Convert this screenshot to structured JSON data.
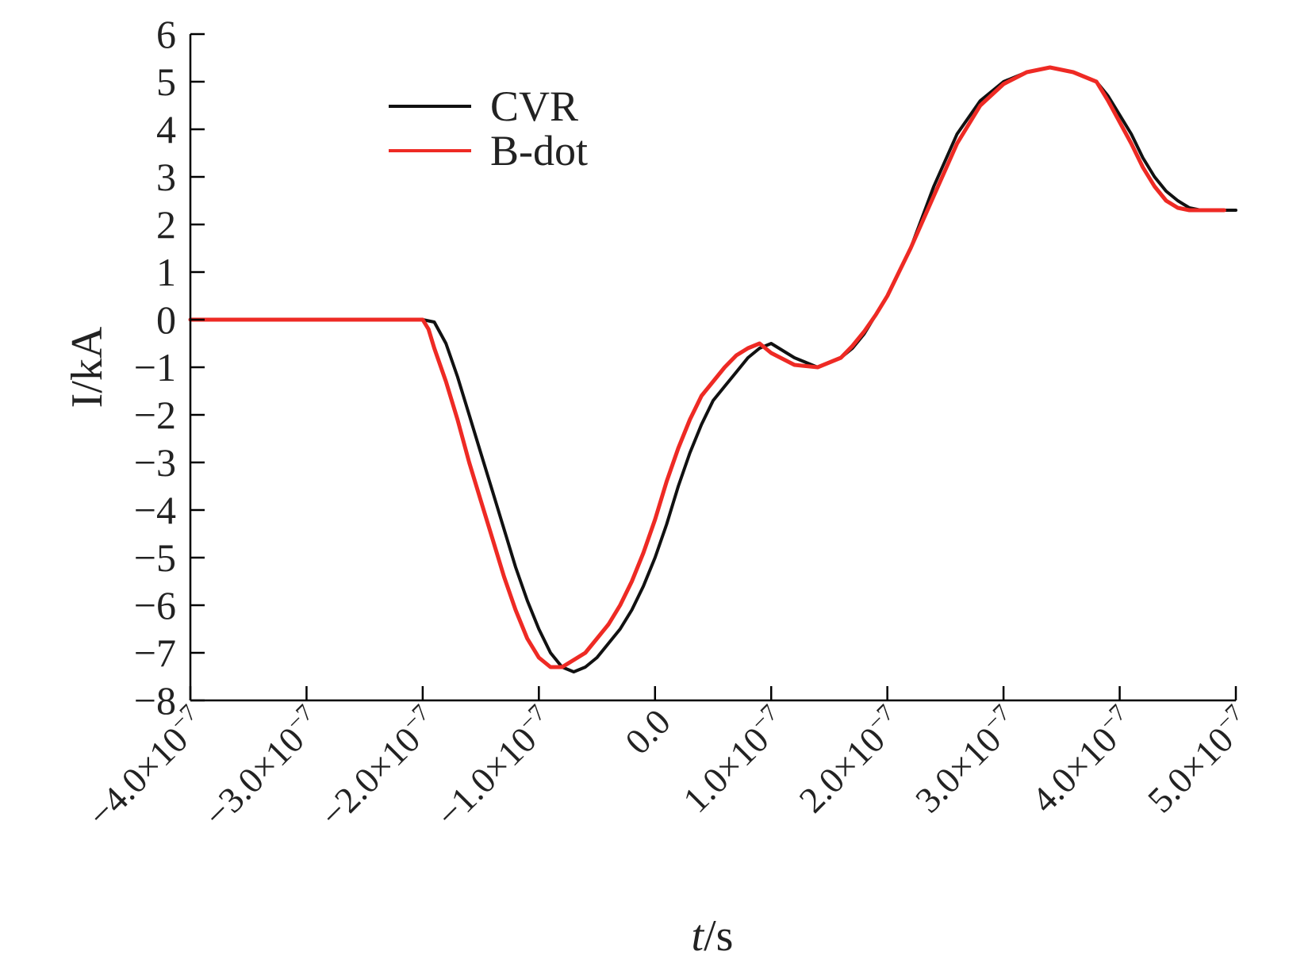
{
  "chart_data": {
    "type": "line",
    "title": "",
    "xlabel": "t/s",
    "xlabel_italic_part": "t",
    "xlabel_rest": "/s",
    "ylabel": "I/kA",
    "xlim": [
      -4e-07,
      5e-07
    ],
    "ylim": [
      -8,
      6
    ],
    "grid": false,
    "legend_position": "upper-left",
    "x_ticks": [
      {
        "value": -4e-07,
        "mant": "−4.0×10",
        "exp": "−7"
      },
      {
        "value": -3e-07,
        "mant": "−3.0×10",
        "exp": "−7"
      },
      {
        "value": -2e-07,
        "mant": "−2.0×10",
        "exp": "−7"
      },
      {
        "value": -1e-07,
        "mant": "−1.0×10",
        "exp": "−7"
      },
      {
        "value": 0,
        "mant": "0.0",
        "exp": ""
      },
      {
        "value": 1e-07,
        "mant": "1.0×10",
        "exp": "−7"
      },
      {
        "value": 2e-07,
        "mant": "2.0×10",
        "exp": "−7"
      },
      {
        "value": 3e-07,
        "mant": "3.0×10",
        "exp": "−7"
      },
      {
        "value": 4e-07,
        "mant": "4.0×10",
        "exp": "−7"
      },
      {
        "value": 5e-07,
        "mant": "5.0×10",
        "exp": "−7"
      }
    ],
    "y_ticks": [
      {
        "value": 6,
        "label": "6"
      },
      {
        "value": 5,
        "label": "5"
      },
      {
        "value": 4,
        "label": "4"
      },
      {
        "value": 3,
        "label": "3"
      },
      {
        "value": 2,
        "label": "2"
      },
      {
        "value": 1,
        "label": "1"
      },
      {
        "value": 0,
        "label": "0"
      },
      {
        "value": -1,
        "label": "−1"
      },
      {
        "value": -2,
        "label": "−2"
      },
      {
        "value": -3,
        "label": "−3"
      },
      {
        "value": -4,
        "label": "−4"
      },
      {
        "value": -5,
        "label": "−5"
      },
      {
        "value": -6,
        "label": "−6"
      },
      {
        "value": -7,
        "label": "−7"
      },
      {
        "value": -8,
        "label": "−8"
      }
    ],
    "series": [
      {
        "name": "CVR",
        "color": "#111111",
        "x": [
          -4e-07,
          -3.5e-07,
          -3e-07,
          -2.5e-07,
          -2e-07,
          -1.9e-07,
          -1.8e-07,
          -1.7e-07,
          -1.6e-07,
          -1.5e-07,
          -1.4e-07,
          -1.3e-07,
          -1.2e-07,
          -1.1e-07,
          -1e-07,
          -9e-08,
          -8e-08,
          -7e-08,
          -6e-08,
          -5e-08,
          -4e-08,
          -3e-08,
          -2e-08,
          -1e-08,
          0,
          1e-08,
          2e-08,
          3e-08,
          4e-08,
          5e-08,
          6e-08,
          7e-08,
          8e-08,
          9e-08,
          1e-07,
          1.2e-07,
          1.4e-07,
          1.6e-07,
          1.7e-07,
          1.8e-07,
          1.9e-07,
          2e-07,
          2.1e-07,
          2.2e-07,
          2.4e-07,
          2.6e-07,
          2.8e-07,
          3e-07,
          3.2e-07,
          3.4e-07,
          3.6e-07,
          3.8e-07,
          3.9e-07,
          4e-07,
          4.1e-07,
          4.2e-07,
          4.3e-07,
          4.4e-07,
          4.5e-07,
          4.6e-07,
          4.7e-07,
          4.8e-07,
          4.9e-07,
          5e-07
        ],
        "y": [
          0,
          0,
          0,
          0,
          0,
          -0.05,
          -0.5,
          -1.2,
          -2.0,
          -2.8,
          -3.6,
          -4.4,
          -5.2,
          -5.9,
          -6.5,
          -7.0,
          -7.3,
          -7.4,
          -7.3,
          -7.1,
          -6.8,
          -6.5,
          -6.1,
          -5.6,
          -5.0,
          -4.3,
          -3.5,
          -2.8,
          -2.2,
          -1.7,
          -1.4,
          -1.1,
          -0.8,
          -0.6,
          -0.5,
          -0.8,
          -1.0,
          -0.8,
          -0.6,
          -0.3,
          0.1,
          0.5,
          1.0,
          1.5,
          2.8,
          3.9,
          4.6,
          5.0,
          5.2,
          5.3,
          5.2,
          5.0,
          4.7,
          4.3,
          3.9,
          3.4,
          3.0,
          2.7,
          2.5,
          2.35,
          2.3,
          2.3,
          2.3,
          2.3
        ]
      },
      {
        "name": "B-dot",
        "color": "#ee2a24",
        "x": [
          -4e-07,
          -3.5e-07,
          -3e-07,
          -2.5e-07,
          -2e-07,
          -1.95e-07,
          -1.9e-07,
          -1.8e-07,
          -1.7e-07,
          -1.6e-07,
          -1.5e-07,
          -1.4e-07,
          -1.3e-07,
          -1.2e-07,
          -1.1e-07,
          -1e-07,
          -9e-08,
          -8e-08,
          -7e-08,
          -6e-08,
          -5e-08,
          -4e-08,
          -3e-08,
          -2e-08,
          -1e-08,
          0,
          1e-08,
          2e-08,
          3e-08,
          4e-08,
          5e-08,
          6e-08,
          7e-08,
          8e-08,
          9e-08,
          1e-07,
          1.2e-07,
          1.4e-07,
          1.6e-07,
          1.7e-07,
          1.8e-07,
          1.9e-07,
          2e-07,
          2.1e-07,
          2.2e-07,
          2.4e-07,
          2.6e-07,
          2.8e-07,
          3e-07,
          3.2e-07,
          3.4e-07,
          3.6e-07,
          3.8e-07,
          3.9e-07,
          4e-07,
          4.1e-07,
          4.2e-07,
          4.3e-07,
          4.4e-07,
          4.5e-07,
          4.6e-07,
          4.7e-07,
          4.8e-07,
          4.9e-07
        ],
        "y": [
          0,
          0,
          0,
          0,
          0,
          -0.2,
          -0.6,
          -1.3,
          -2.1,
          -3.0,
          -3.8,
          -4.6,
          -5.4,
          -6.1,
          -6.7,
          -7.1,
          -7.3,
          -7.3,
          -7.15,
          -7.0,
          -6.7,
          -6.4,
          -6.0,
          -5.5,
          -4.9,
          -4.2,
          -3.4,
          -2.7,
          -2.1,
          -1.6,
          -1.3,
          -1.0,
          -0.75,
          -0.6,
          -0.5,
          -0.7,
          -0.95,
          -1.0,
          -0.8,
          -0.55,
          -0.25,
          0.1,
          0.5,
          1.0,
          1.5,
          2.6,
          3.7,
          4.5,
          4.95,
          5.2,
          5.3,
          5.2,
          5.0,
          4.6,
          4.15,
          3.7,
          3.2,
          2.8,
          2.5,
          2.35,
          2.3,
          2.3,
          2.3,
          2.3
        ]
      }
    ]
  }
}
